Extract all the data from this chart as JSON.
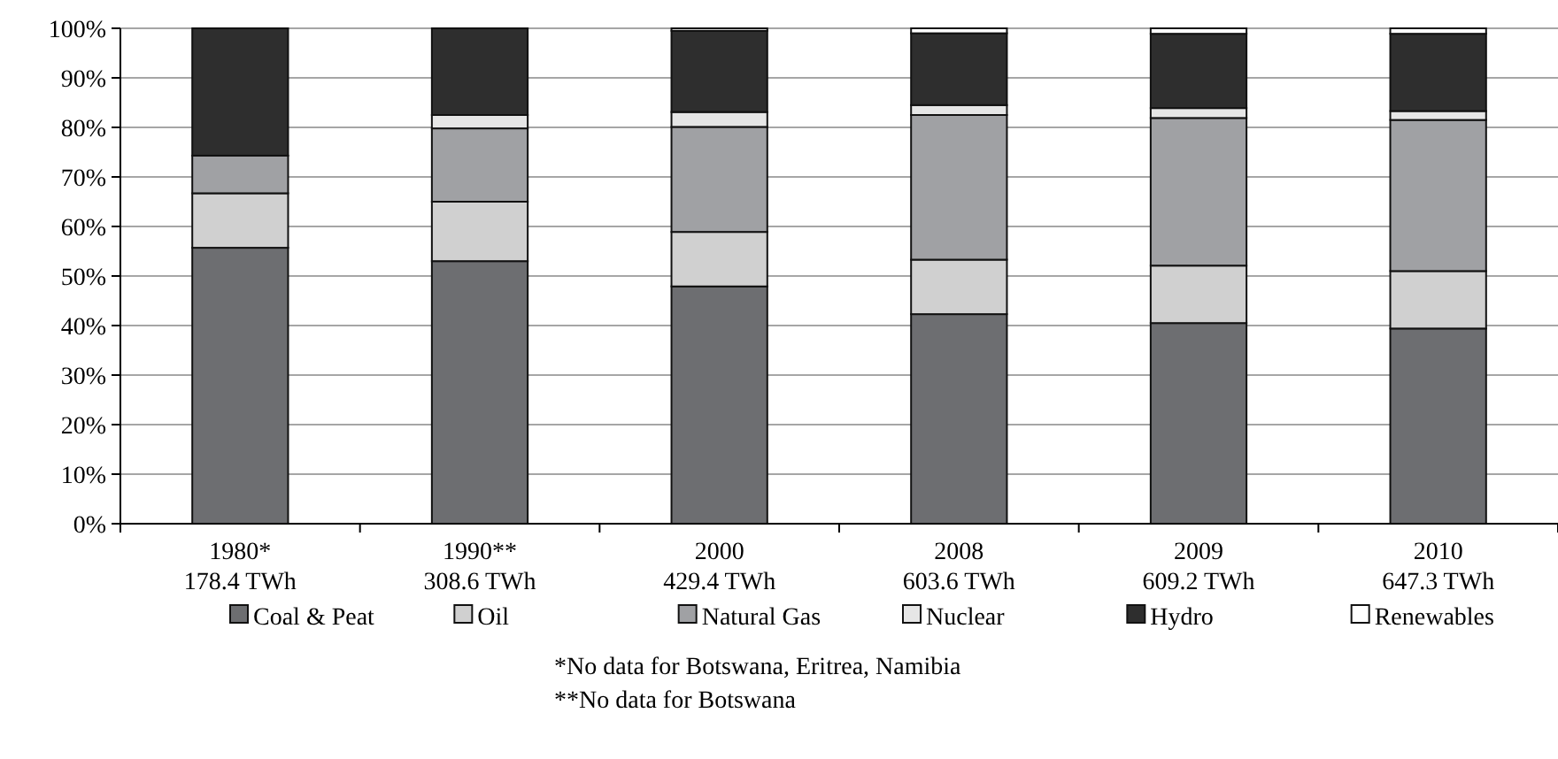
{
  "chart_data": {
    "type": "bar",
    "stacked": true,
    "categories": [
      "1980*\n178.4 TWh",
      "1990**\n308.6 TWh",
      "2000\n429.4 TWh",
      "2008\n603.6 TWh",
      "2009\n609.2 TWh",
      "2010\n647.3 TWh"
    ],
    "series": [
      {
        "name": "Coal & Peat",
        "color": "#6d6e71",
        "values": [
          55.7,
          53,
          47.9,
          42.3,
          40.5,
          39.4
        ]
      },
      {
        "name": "Oil",
        "color": "#d0d0d0",
        "values": [
          11,
          12,
          11,
          11,
          11.6,
          11.6
        ]
      },
      {
        "name": "Natural Gas",
        "color": "#a0a1a4",
        "values": [
          7.6,
          14.8,
          21.2,
          29.2,
          29.8,
          30.5
        ]
      },
      {
        "name": "Nuclear",
        "color": "#e6e6e6",
        "values": [
          0,
          2.7,
          3,
          2,
          2,
          1.8
        ]
      },
      {
        "name": "Hydro",
        "color": "#2e2e2e",
        "values": [
          25.7,
          17.5,
          16.4,
          14.5,
          15,
          15.6
        ]
      },
      {
        "name": "Renewables",
        "color": "#ffffff",
        "values": [
          0,
          0,
          0.5,
          1,
          1.1,
          1.1
        ]
      }
    ],
    "ylim": [
      0,
      100
    ],
    "yticks": [
      {
        "value": 0,
        "label": "0%"
      },
      {
        "value": 10,
        "label": "10%"
      },
      {
        "value": 20,
        "label": "20%"
      },
      {
        "value": 30,
        "label": "30%"
      },
      {
        "value": 40,
        "label": "40%"
      },
      {
        "value": 50,
        "label": "50%"
      },
      {
        "value": 60,
        "label": "60%"
      },
      {
        "value": 70,
        "label": "70%"
      },
      {
        "value": 80,
        "label": "80%"
      },
      {
        "value": 90,
        "label": "90%"
      },
      {
        "value": 100,
        "label": "100%"
      }
    ],
    "grid": "y",
    "legend": "bottom",
    "annotations": [
      "*No data for Botswana, Eritrea, Namibia",
      "**No data for Botswana"
    ]
  }
}
